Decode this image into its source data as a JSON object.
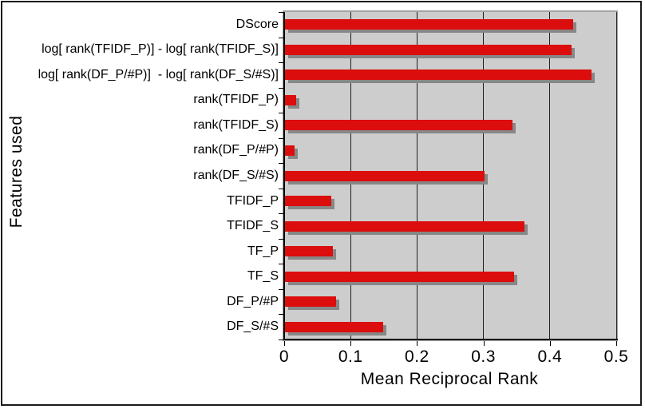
{
  "chart_data": {
    "type": "bar",
    "orientation": "horizontal",
    "title": "",
    "xlabel": "Mean Reciprocal Rank",
    "ylabel": "Features used",
    "categories": [
      "DScore",
      "log[ rank(TFIDF_P)] - log[ rank(TFIDF_S)]",
      "log[ rank(DF_P/#P)]  - log[ rank(DF_S/#S)]",
      "rank(TFIDF_P)",
      "rank(TFIDF_S)",
      "rank(DF_P/#P)",
      "rank(DF_S/#S)",
      "TFIDF_P",
      "TFIDF_S",
      "TF_P",
      "TF_S",
      "DF_P/#P",
      "DF_S/#S"
    ],
    "values": [
      0.434,
      0.432,
      0.462,
      0.017,
      0.342,
      0.014,
      0.3,
      0.07,
      0.36,
      0.072,
      0.345,
      0.077,
      0.148
    ],
    "xlim": [
      0,
      0.5
    ],
    "x_ticks": [
      0,
      0.1,
      0.2,
      0.3,
      0.4,
      0.5
    ],
    "x_tick_labels": [
      "0",
      "0.1",
      "0.2",
      "0.3",
      "0.4",
      "0.5"
    ],
    "grid": "vertical-gridlines",
    "legend": "none",
    "colors": {
      "bar": "#dc0d0d",
      "bar_shadow": "#878787",
      "plot_background": "#cdcdcd",
      "plot_border": "#a3a3a3",
      "gridline": "#1f1f1f",
      "frame_border": "#1c1c1c",
      "text": "#000000"
    }
  }
}
